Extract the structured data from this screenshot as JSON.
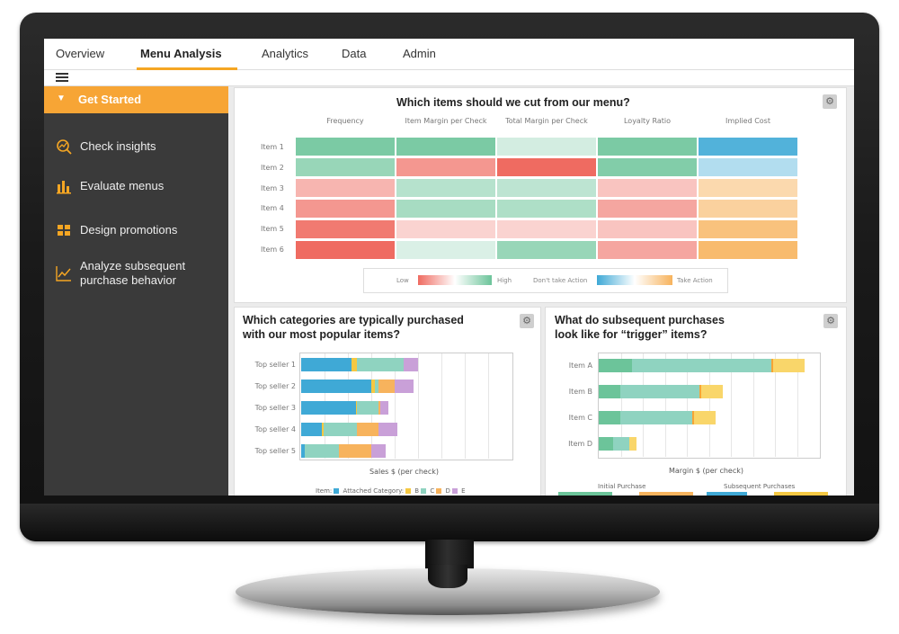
{
  "colors": {
    "accent": "#f5a623",
    "green": "#6cc49a",
    "red": "#ef6b61",
    "blue": "#3fa9d6",
    "orange": "#f7b35d",
    "purple": "#c9a0d8"
  },
  "nav": {
    "tabs": [
      {
        "label": "Overview"
      },
      {
        "label": "Menu Analysis"
      },
      {
        "label": "Analytics"
      },
      {
        "label": "Data"
      },
      {
        "label": "Admin"
      }
    ]
  },
  "sidebar": {
    "header": "Get Started",
    "items": [
      {
        "label": "Check insights",
        "icon": "insights-icon"
      },
      {
        "label": "Evaluate menus",
        "icon": "bar-chart-icon"
      },
      {
        "label": "Design promotions",
        "icon": "grid-icon"
      },
      {
        "label": "Analyze subsequent purchase behavior",
        "icon": "line-chart-icon"
      }
    ]
  },
  "heatmap_panel": {
    "title": "Which items should we cut from our menu?",
    "columns": [
      "Frequency",
      "Item Margin per Check",
      "Total Margin per Check",
      "Loyalty Ratio",
      "Implied Cost"
    ],
    "rows": [
      "Item 1",
      "Item 2",
      "Item 3",
      "Item 4",
      "Item 5",
      "Item 6"
    ],
    "legend": {
      "low": "Low",
      "high": "High",
      "dont": "Don't take Action",
      "take": "Take Action"
    }
  },
  "categories_panel": {
    "title_line1": "Which categories are typically purchased",
    "title_line2": "with our most popular items?",
    "xlabel": "Sales $ (per check)",
    "legend": {
      "item": "Item:",
      "attached": "Attached Category:",
      "b": "B",
      "c": "C",
      "d": "D",
      "e": "E"
    }
  },
  "trigger_panel": {
    "title_line1": "What do subsequent purchases",
    "title_line2": "look like for “trigger” items?",
    "xlabel": "Margin $ (per check)",
    "legend": {
      "initial": "Initial Purchase",
      "subsequent": "Subsequent Purchases"
    }
  },
  "chart_data": [
    {
      "type": "heatmap",
      "title": "Which items should we cut from our menu?",
      "columns": [
        "Frequency",
        "Item Margin per Check",
        "Total Margin per Check",
        "Loyalty Ratio",
        "Implied Cost"
      ],
      "rows": [
        "Item 1",
        "Item 2",
        "Item 3",
        "Item 4",
        "Item 5",
        "Item 6"
      ],
      "scale_note": "first four columns: -1 = Low (red) .. +1 = High (green); Implied Cost: -1 = Don't take Action (blue) .. +1 = Take Action (orange)",
      "values": [
        [
          0.9,
          0.9,
          0.3,
          0.9,
          -0.9
        ],
        [
          0.7,
          -0.7,
          -1.0,
          0.85,
          -0.4
        ],
        [
          -0.5,
          0.5,
          0.45,
          -0.4,
          0.5
        ],
        [
          -0.7,
          0.6,
          0.55,
          -0.6,
          0.6
        ],
        [
          -0.9,
          -0.3,
          -0.3,
          -0.4,
          0.8
        ],
        [
          -1.0,
          0.25,
          0.7,
          -0.6,
          0.9
        ]
      ]
    },
    {
      "type": "bar",
      "stacked": true,
      "orientation": "horizontal",
      "categories": [
        "Top seller 1",
        "Top seller 2",
        "Top seller 3",
        "Top seller 4",
        "Top seller 5"
      ],
      "xlabel": "Sales $ (per check)",
      "series": [
        {
          "name": "Item",
          "values": [
            4.3,
            6.0,
            4.7,
            1.8,
            0.3
          ]
        },
        {
          "name": "B",
          "values": [
            0.5,
            0.3,
            0.1,
            0.1,
            0.0
          ]
        },
        {
          "name": "C",
          "values": [
            4.0,
            0.3,
            1.8,
            2.9,
            2.9
          ]
        },
        {
          "name": "D",
          "values": [
            0.0,
            1.4,
            0.2,
            1.8,
            2.8
          ]
        },
        {
          "name": "E",
          "values": [
            1.2,
            1.6,
            0.7,
            1.6,
            1.2
          ]
        }
      ]
    },
    {
      "type": "bar",
      "stacked": true,
      "orientation": "horizontal",
      "categories": [
        "Item A",
        "Item B",
        "Item C",
        "Item D"
      ],
      "xlabel": "Margin $ (per check)",
      "series": [
        {
          "name": "Initial Purchase",
          "values": [
            2.3,
            1.5,
            1.5,
            1.0
          ]
        },
        {
          "name": "Subsequent Purchases",
          "values": [
            9.7,
            5.5,
            5.0,
            1.1
          ]
        },
        {
          "name": "",
          "values": [
            0.1,
            0.1,
            0.1,
            0.0
          ]
        },
        {
          "name": "",
          "values": [
            2.2,
            1.5,
            1.5,
            0.5
          ]
        }
      ]
    }
  ]
}
